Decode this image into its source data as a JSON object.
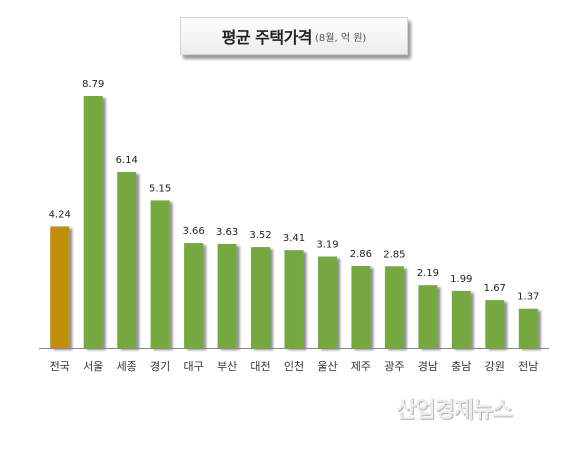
{
  "header": {
    "title": "평균 주택가격",
    "subtitle": "(8월, 억 원)"
  },
  "watermark": "산업경제뉴스",
  "colors": {
    "highlight": "#c0900c",
    "bar": "#76a83f",
    "baseline": "#888888"
  },
  "chart_data": {
    "type": "bar",
    "title": "평균 주택가격",
    "subtitle": "(8월, 억 원)",
    "categories": [
      "전국",
      "서울",
      "세종",
      "경기",
      "대구",
      "부산",
      "대전",
      "인천",
      "울산",
      "제주",
      "광주",
      "경남",
      "충남",
      "강원",
      "전남"
    ],
    "values": [
      4.24,
      8.79,
      6.14,
      5.15,
      3.66,
      3.63,
      3.52,
      3.41,
      3.19,
      2.86,
      2.85,
      2.19,
      1.99,
      1.67,
      1.37
    ],
    "value_labels": [
      "4.24",
      "8.79",
      "6.14",
      "5.15",
      "3.66",
      "3.63",
      "3.52",
      "3.41",
      "3.19",
      "2.86",
      "2.85",
      "2.19",
      "1.99",
      "1.67",
      "1.37"
    ],
    "highlight_category": "전국",
    "ylim": [
      0,
      8.79
    ],
    "grid": false,
    "legend": "none",
    "xlabel": "",
    "ylabel": ""
  }
}
